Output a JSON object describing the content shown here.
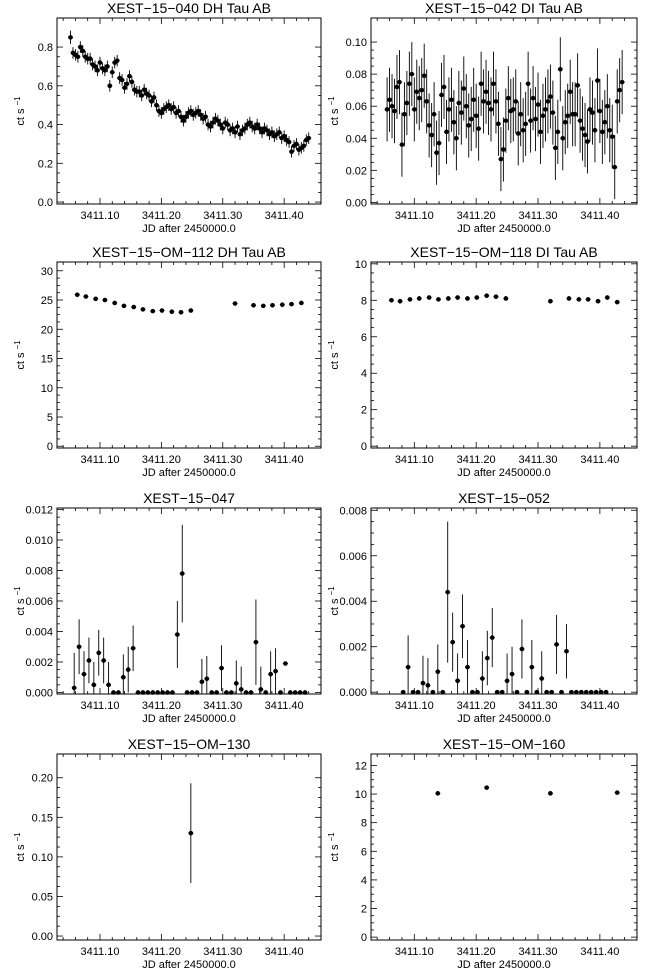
{
  "xlabel": "JD after 2450000.0",
  "xticks": [
    "3411.10",
    "3411.20",
    "3411.30",
    "3411.40"
  ],
  "chart_data": [
    {
      "type": "scatter",
      "title": "XEST−15−040 DH Tau AB",
      "ylabel": "ct s",
      "ylabel_sup": "−1",
      "xlim": [
        3411.03,
        3411.46
      ],
      "ylim": [
        -0.01,
        0.95
      ],
      "yticks": [
        "0.0",
        "0.2",
        "0.4",
        "0.6",
        "0.8"
      ],
      "ytick_values": [
        0.0,
        0.2,
        0.4,
        0.6,
        0.8
      ],
      "x": [
        3411.052,
        3411.056,
        3411.06,
        3411.064,
        3411.068,
        3411.072,
        3411.076,
        3411.08,
        3411.084,
        3411.088,
        3411.092,
        3411.096,
        3411.1,
        3411.104,
        3411.108,
        3411.112,
        3411.116,
        3411.12,
        3411.124,
        3411.128,
        3411.132,
        3411.136,
        3411.14,
        3411.144,
        3411.148,
        3411.152,
        3411.156,
        3411.16,
        3411.164,
        3411.168,
        3411.172,
        3411.176,
        3411.18,
        3411.184,
        3411.188,
        3411.192,
        3411.196,
        3411.2,
        3411.204,
        3411.208,
        3411.212,
        3411.216,
        3411.22,
        3411.224,
        3411.228,
        3411.232,
        3411.236,
        3411.24,
        3411.244,
        3411.248,
        3411.252,
        3411.256,
        3411.26,
        3411.264,
        3411.268,
        3411.272,
        3411.276,
        3411.28,
        3411.284,
        3411.288,
        3411.292,
        3411.296,
        3411.3,
        3411.304,
        3411.308,
        3411.312,
        3411.316,
        3411.32,
        3411.324,
        3411.328,
        3411.332,
        3411.336,
        3411.34,
        3411.344,
        3411.348,
        3411.352,
        3411.356,
        3411.36,
        3411.364,
        3411.368,
        3411.372,
        3411.376,
        3411.38,
        3411.384,
        3411.388,
        3411.392,
        3411.396,
        3411.4,
        3411.404,
        3411.408,
        3411.412,
        3411.416,
        3411.42,
        3411.424,
        3411.428,
        3411.432,
        3411.436,
        3411.44
      ],
      "y": [
        0.85,
        0.77,
        0.76,
        0.75,
        0.8,
        0.78,
        0.75,
        0.74,
        0.74,
        0.71,
        0.7,
        0.68,
        0.72,
        0.69,
        0.68,
        0.7,
        0.6,
        0.67,
        0.72,
        0.73,
        0.64,
        0.63,
        0.59,
        0.61,
        0.65,
        0.62,
        0.58,
        0.57,
        0.57,
        0.55,
        0.58,
        0.56,
        0.55,
        0.52,
        0.54,
        0.5,
        0.47,
        0.46,
        0.48,
        0.49,
        0.5,
        0.48,
        0.49,
        0.46,
        0.47,
        0.44,
        0.42,
        0.44,
        0.46,
        0.47,
        0.45,
        0.46,
        0.47,
        0.45,
        0.43,
        0.44,
        0.4,
        0.39,
        0.41,
        0.43,
        0.42,
        0.4,
        0.38,
        0.41,
        0.4,
        0.37,
        0.38,
        0.36,
        0.39,
        0.35,
        0.37,
        0.38,
        0.4,
        0.41,
        0.39,
        0.38,
        0.4,
        0.38,
        0.36,
        0.38,
        0.37,
        0.35,
        0.36,
        0.34,
        0.35,
        0.36,
        0.33,
        0.34,
        0.32,
        0.31,
        0.26,
        0.29,
        0.3,
        0.27,
        0.28,
        0.29,
        0.32,
        0.33
      ],
      "err": [
        0.035,
        0.03,
        0.03,
        0.03,
        0.03,
        0.03,
        0.03,
        0.03,
        0.03,
        0.03,
        0.03,
        0.03,
        0.03,
        0.03,
        0.03,
        0.03,
        0.03,
        0.03,
        0.03,
        0.03,
        0.03,
        0.03,
        0.03,
        0.03,
        0.03,
        0.03,
        0.03,
        0.03,
        0.03,
        0.03,
        0.03,
        0.03,
        0.03,
        0.03,
        0.03,
        0.03,
        0.03,
        0.03,
        0.03,
        0.03,
        0.03,
        0.03,
        0.03,
        0.03,
        0.03,
        0.03,
        0.03,
        0.03,
        0.03,
        0.03,
        0.03,
        0.03,
        0.03,
        0.03,
        0.03,
        0.03,
        0.03,
        0.03,
        0.03,
        0.03,
        0.03,
        0.03,
        0.03,
        0.03,
        0.03,
        0.03,
        0.03,
        0.03,
        0.03,
        0.03,
        0.03,
        0.03,
        0.03,
        0.03,
        0.03,
        0.03,
        0.03,
        0.03,
        0.03,
        0.03,
        0.03,
        0.03,
        0.03,
        0.03,
        0.03,
        0.03,
        0.03,
        0.03,
        0.03,
        0.03,
        0.03,
        0.03,
        0.03,
        0.03,
        0.03,
        0.03,
        0.03,
        0.03
      ]
    },
    {
      "type": "scatter",
      "title": "XEST−15−042 DI Tau AB",
      "ylabel": "ct s",
      "ylabel_sup": "−1",
      "xlim": [
        3411.03,
        3411.46
      ],
      "ylim": [
        -0.001,
        0.115
      ],
      "yticks": [
        "0.00",
        "0.02",
        "0.04",
        "0.06",
        "0.08",
        "0.10"
      ],
      "ytick_values": [
        0.0,
        0.02,
        0.04,
        0.06,
        0.08,
        0.1
      ],
      "x": [
        3411.056,
        3411.06,
        3411.064,
        3411.068,
        3411.072,
        3411.076,
        3411.08,
        3411.084,
        3411.088,
        3411.092,
        3411.096,
        3411.1,
        3411.104,
        3411.108,
        3411.112,
        3411.116,
        3411.12,
        3411.124,
        3411.128,
        3411.132,
        3411.136,
        3411.14,
        3411.144,
        3411.148,
        3411.152,
        3411.156,
        3411.16,
        3411.164,
        3411.168,
        3411.172,
        3411.176,
        3411.18,
        3411.184,
        3411.188,
        3411.192,
        3411.196,
        3411.2,
        3411.204,
        3411.208,
        3411.212,
        3411.216,
        3411.22,
        3411.224,
        3411.228,
        3411.232,
        3411.236,
        3411.24,
        3411.244,
        3411.248,
        3411.252,
        3411.256,
        3411.26,
        3411.264,
        3411.268,
        3411.272,
        3411.276,
        3411.28,
        3411.284,
        3411.288,
        3411.292,
        3411.296,
        3411.3,
        3411.304,
        3411.308,
        3411.312,
        3411.316,
        3411.32,
        3411.324,
        3411.328,
        3411.332,
        3411.336,
        3411.34,
        3411.344,
        3411.348,
        3411.352,
        3411.356,
        3411.36,
        3411.364,
        3411.368,
        3411.372,
        3411.376,
        3411.38,
        3411.384,
        3411.388,
        3411.392,
        3411.396,
        3411.4,
        3411.404,
        3411.408,
        3411.412,
        3411.416,
        3411.42,
        3411.424,
        3411.428,
        3411.432,
        3411.436
      ],
      "y": [
        0.058,
        0.064,
        0.06,
        0.057,
        0.072,
        0.075,
        0.036,
        0.055,
        0.062,
        0.074,
        0.08,
        0.058,
        0.069,
        0.065,
        0.07,
        0.079,
        0.063,
        0.048,
        0.042,
        0.055,
        0.031,
        0.037,
        0.067,
        0.072,
        0.044,
        0.058,
        0.064,
        0.05,
        0.04,
        0.062,
        0.056,
        0.071,
        0.06,
        0.048,
        0.052,
        0.064,
        0.054,
        0.046,
        0.074,
        0.063,
        0.069,
        0.062,
        0.058,
        0.074,
        0.063,
        0.049,
        0.027,
        0.033,
        0.051,
        0.065,
        0.057,
        0.058,
        0.063,
        0.043,
        0.055,
        0.045,
        0.049,
        0.074,
        0.051,
        0.065,
        0.052,
        0.061,
        0.044,
        0.054,
        0.058,
        0.063,
        0.066,
        0.056,
        0.034,
        0.044,
        0.083,
        0.04,
        0.05,
        0.054,
        0.069,
        0.055,
        0.055,
        0.073,
        0.051,
        0.046,
        0.042,
        0.038,
        0.058,
        0.056,
        0.045,
        0.076,
        0.057,
        0.044,
        0.05,
        0.06,
        0.045,
        0.041,
        0.022,
        0.063,
        0.07,
        0.075
      ],
      "err": [
        0.02,
        0.02,
        0.02,
        0.02,
        0.02,
        0.02,
        0.02,
        0.02,
        0.02,
        0.02,
        0.02,
        0.02,
        0.02,
        0.02,
        0.02,
        0.02,
        0.02,
        0.02,
        0.02,
        0.02,
        0.02,
        0.02,
        0.02,
        0.02,
        0.02,
        0.02,
        0.02,
        0.02,
        0.02,
        0.02,
        0.02,
        0.02,
        0.02,
        0.02,
        0.02,
        0.02,
        0.02,
        0.02,
        0.02,
        0.02,
        0.02,
        0.02,
        0.02,
        0.02,
        0.02,
        0.02,
        0.02,
        0.02,
        0.02,
        0.02,
        0.02,
        0.02,
        0.02,
        0.02,
        0.02,
        0.02,
        0.02,
        0.02,
        0.02,
        0.02,
        0.02,
        0.02,
        0.02,
        0.02,
        0.02,
        0.02,
        0.02,
        0.02,
        0.02,
        0.02,
        0.02,
        0.02,
        0.02,
        0.02,
        0.02,
        0.02,
        0.02,
        0.02,
        0.02,
        0.02,
        0.02,
        0.02,
        0.02,
        0.02,
        0.02,
        0.02,
        0.02,
        0.02,
        0.02,
        0.02,
        0.02,
        0.02,
        0.02,
        0.02,
        0.02,
        0.02
      ]
    },
    {
      "type": "scatter",
      "title": "XEST−15−OM−112 DH Tau AB",
      "ylabel": "ct s",
      "ylabel_sup": "−1",
      "xlim": [
        3411.03,
        3411.46
      ],
      "ylim": [
        -0.3,
        31.5
      ],
      "yticks": [
        "0",
        "5",
        "10",
        "15",
        "20",
        "25",
        "30"
      ],
      "ytick_values": [
        0,
        5,
        10,
        15,
        20,
        25,
        30
      ],
      "x": [
        3411.063,
        3411.077,
        3411.093,
        3411.108,
        3411.124,
        3411.139,
        3411.155,
        3411.17,
        3411.186,
        3411.201,
        3411.217,
        3411.232,
        3411.248,
        3411.32,
        3411.35,
        3411.366,
        3411.381,
        3411.397,
        3411.412,
        3411.428
      ],
      "y": [
        25.9,
        25.6,
        25.2,
        25.0,
        24.5,
        24.0,
        23.8,
        23.4,
        23.1,
        23.2,
        23.0,
        22.9,
        23.2,
        24.4,
        24.1,
        24.0,
        24.1,
        24.2,
        24.3,
        24.5
      ],
      "err": [
        0.25,
        0.25,
        0.25,
        0.25,
        0.25,
        0.25,
        0.25,
        0.25,
        0.25,
        0.25,
        0.25,
        0.25,
        0.25,
        0.25,
        0.25,
        0.25,
        0.25,
        0.25,
        0.25,
        0.25
      ]
    },
    {
      "type": "scatter",
      "title": "XEST−15−OM−118 DI Tau AB",
      "ylabel": "ct s",
      "ylabel_sup": "−1",
      "xlim": [
        3411.03,
        3411.46
      ],
      "ylim": [
        -0.1,
        10.1
      ],
      "yticks": [
        "0",
        "2",
        "4",
        "6",
        "8",
        "10"
      ],
      "ytick_values": [
        0,
        2,
        4,
        6,
        8,
        10
      ],
      "x": [
        3411.063,
        3411.077,
        3411.093,
        3411.108,
        3411.124,
        3411.139,
        3411.155,
        3411.17,
        3411.186,
        3411.201,
        3411.217,
        3411.232,
        3411.248,
        3411.32,
        3411.35,
        3411.366,
        3411.381,
        3411.397,
        3411.412,
        3411.428
      ],
      "y": [
        8.0,
        7.95,
        8.05,
        8.1,
        8.15,
        8.05,
        8.1,
        8.15,
        8.1,
        8.15,
        8.25,
        8.2,
        8.1,
        7.95,
        8.1,
        8.05,
        8.05,
        7.95,
        8.15,
        7.9
      ],
      "err": [
        0.12,
        0.12,
        0.12,
        0.12,
        0.12,
        0.12,
        0.12,
        0.12,
        0.12,
        0.12,
        0.12,
        0.12,
        0.12,
        0.12,
        0.12,
        0.12,
        0.12,
        0.12,
        0.12,
        0.12
      ]
    },
    {
      "type": "scatter",
      "title": "XEST−15−047",
      "ylabel": "ct s",
      "ylabel_sup": "−1",
      "xlim": [
        3411.03,
        3411.46
      ],
      "ylim": [
        -0.0001,
        0.0121
      ],
      "yticks": [
        "0.000",
        "0.002",
        "0.004",
        "0.006",
        "0.008",
        "0.010",
        "0.012"
      ],
      "ytick_values": [
        0.0,
        0.002,
        0.004,
        0.006,
        0.008,
        0.01,
        0.012
      ],
      "x": [
        3411.058,
        3411.066,
        3411.074,
        3411.082,
        3411.09,
        3411.098,
        3411.106,
        3411.114,
        3411.122,
        3411.13,
        3411.138,
        3411.146,
        3411.154,
        3411.162,
        3411.17,
        3411.178,
        3411.186,
        3411.194,
        3411.202,
        3411.21,
        3411.218,
        3411.226,
        3411.234,
        3411.242,
        3411.25,
        3411.258,
        3411.266,
        3411.274,
        3411.282,
        3411.29,
        3411.298,
        3411.306,
        3411.314,
        3411.322,
        3411.33,
        3411.338,
        3411.346,
        3411.354,
        3411.362,
        3411.37,
        3411.378,
        3411.386,
        3411.394,
        3411.402,
        3411.41,
        3411.418,
        3411.426,
        3411.434
      ],
      "y": [
        0.0003,
        0.003,
        0.0012,
        0.0021,
        0.0005,
        0.0026,
        0.0021,
        0.0005,
        0.0,
        0.0,
        0.001,
        0.0015,
        0.0029,
        0.0,
        0.0,
        0.0,
        0.0,
        0.0,
        0.0,
        0.0,
        0.0,
        0.0038,
        0.0078,
        0.0,
        0.0,
        0.0,
        0.0007,
        0.0009,
        0.0,
        0.0,
        0.0016,
        0.0,
        0.0,
        0.0006,
        0.0002,
        0.0,
        0.0,
        0.0033,
        0.0002,
        0.0,
        0.0012,
        0.0014,
        0.0,
        0.0019,
        0.0,
        0.0,
        0.0,
        0.0
      ],
      "err": [
        0.0023,
        0.0018,
        0.0015,
        0.0015,
        0.0015,
        0.0015,
        0.0015,
        0.0015,
        0.0,
        0.0,
        0.0015,
        0.0015,
        0.0015,
        0.0,
        0.0,
        0.0,
        0.0,
        0.0,
        0.0,
        0.0,
        0.0,
        0.0022,
        0.0032,
        0.0,
        0.0,
        0.0,
        0.0015,
        0.0015,
        0.0,
        0.0,
        0.0015,
        0.0,
        0.0,
        0.0015,
        0.0015,
        0.0,
        0.0,
        0.0028,
        0.0015,
        0.0,
        0.0015,
        0.0015,
        0.0,
        0.0,
        0.0,
        0.0,
        0.0,
        0.0
      ]
    },
    {
      "type": "scatter",
      "title": "XEST−15−052",
      "ylabel": "ct s",
      "ylabel_sup": "−1",
      "xlim": [
        3411.03,
        3411.46
      ],
      "ylim": [
        -8e-05,
        0.0081
      ],
      "yticks": [
        "0.000",
        "0.002",
        "0.004",
        "0.006",
        "0.008"
      ],
      "ytick_values": [
        0.0,
        0.002,
        0.004,
        0.006,
        0.008
      ],
      "x": [
        3411.082,
        3411.09,
        3411.098,
        3411.106,
        3411.114,
        3411.122,
        3411.13,
        3411.138,
        3411.146,
        3411.154,
        3411.162,
        3411.17,
        3411.178,
        3411.186,
        3411.194,
        3411.202,
        3411.21,
        3411.218,
        3411.226,
        3411.234,
        3411.242,
        3411.25,
        3411.258,
        3411.266,
        3411.274,
        3411.282,
        3411.29,
        3411.298,
        3411.306,
        3411.314,
        3411.322,
        3411.33,
        3411.338,
        3411.346,
        3411.354,
        3411.362,
        3411.37,
        3411.378,
        3411.386,
        3411.394,
        3411.402,
        3411.41
      ],
      "y": [
        0.0,
        0.0011,
        0.0,
        0.0,
        0.0004,
        0.0003,
        0.0,
        0.0009,
        0.0,
        0.0044,
        0.0022,
        0.0005,
        0.0029,
        0.0011,
        0.0,
        0.0,
        0.0006,
        0.0015,
        0.0024,
        0.0,
        0.0,
        0.0005,
        0.0008,
        0.0,
        0.0019,
        0.0,
        0.0011,
        0.0,
        0.0006,
        0.0,
        0.0,
        0.0021,
        0.0,
        0.0018,
        0.0,
        0.0,
        0.0,
        0.0,
        0.0,
        0.0,
        0.0,
        0.0
      ],
      "err": [
        0.0,
        0.0014,
        0.0,
        0.0,
        0.0012,
        0.0012,
        0.0,
        0.0012,
        0.0,
        0.0031,
        0.0013,
        0.0012,
        0.0014,
        0.0012,
        0.0,
        0.0,
        0.0012,
        0.0012,
        0.0013,
        0.0,
        0.0,
        0.0012,
        0.0012,
        0.0,
        0.0013,
        0.0,
        0.0012,
        0.0,
        0.0012,
        0.0,
        0.0,
        0.0013,
        0.0,
        0.0012,
        0.0,
        0.0,
        0.0,
        0.0,
        0.0,
        0.0,
        0.0,
        0.0
      ]
    },
    {
      "type": "scatter",
      "title": "XEST−15−OM−130",
      "ylabel": "ct s",
      "ylabel_sup": "−1",
      "xlim": [
        3411.03,
        3411.46
      ],
      "ylim": [
        -0.005,
        0.23
      ],
      "yticks": [
        "0.00",
        "0.05",
        "0.10",
        "0.15",
        "0.20"
      ],
      "ytick_values": [
        0.0,
        0.05,
        0.1,
        0.15,
        0.2
      ],
      "x": [
        3411.248
      ],
      "y": [
        0.13
      ],
      "err": [
        0.063
      ]
    },
    {
      "type": "scatter",
      "title": "XEST−15−OM−160",
      "ylabel": "ct s",
      "ylabel_sup": "−1",
      "xlim": [
        3411.03,
        3411.46
      ],
      "ylim": [
        -0.2,
        12.8
      ],
      "yticks": [
        "0",
        "2",
        "4",
        "6",
        "8",
        "10",
        "12"
      ],
      "ytick_values": [
        0,
        2,
        4,
        6,
        8,
        10,
        12
      ],
      "x": [
        3411.138,
        3411.217,
        3411.32,
        3411.428
      ],
      "y": [
        10.05,
        10.45,
        10.05,
        10.1
      ],
      "err": [
        0.12,
        0.12,
        0.12,
        0.12
      ]
    }
  ]
}
